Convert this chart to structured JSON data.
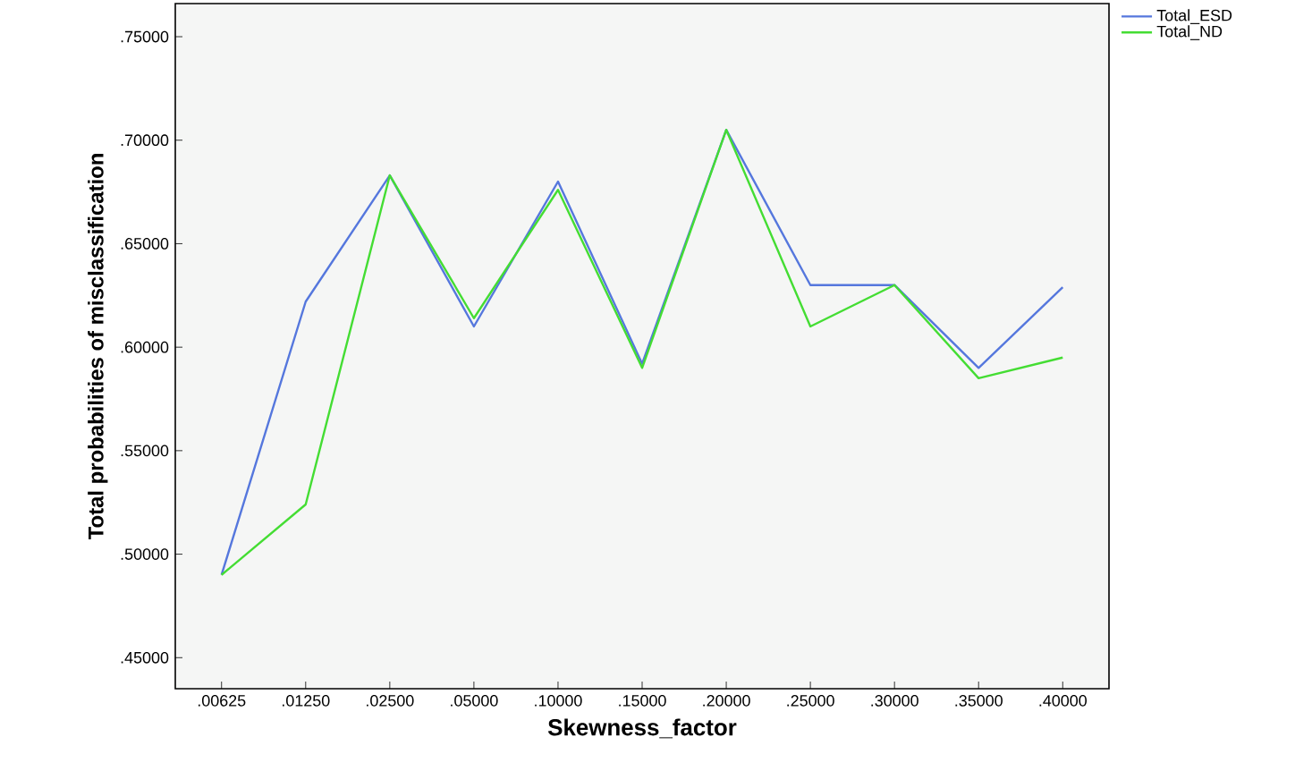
{
  "chart_data": {
    "type": "line",
    "xlabel": "Skewness_factor",
    "ylabel": "Total probabilities of misclassification",
    "categories": [
      ".00625",
      ".01250",
      ".02500",
      ".05000",
      ".10000",
      ".15000",
      ".20000",
      ".25000",
      ".30000",
      ".35000",
      ".40000"
    ],
    "series": [
      {
        "name": "Total_ESD",
        "color": "#5577dd",
        "values": [
          0.49,
          0.622,
          0.683,
          0.61,
          0.68,
          0.592,
          0.705,
          0.63,
          0.63,
          0.59,
          0.629
        ]
      },
      {
        "name": "Total_ND",
        "color": "#44dd33",
        "values": [
          0.49,
          0.524,
          0.683,
          0.614,
          0.676,
          0.59,
          0.705,
          0.61,
          0.63,
          0.585,
          0.595
        ]
      }
    ],
    "ylim": [
      0.435,
      0.766
    ],
    "yticks": [
      {
        "value": 0.45,
        "label": ".45000"
      },
      {
        "value": 0.5,
        "label": ".50000"
      },
      {
        "value": 0.55,
        "label": ".55000"
      },
      {
        "value": 0.6,
        "label": ".60000"
      },
      {
        "value": 0.65,
        "label": ".65000"
      },
      {
        "value": 0.7,
        "label": ".70000"
      },
      {
        "value": 0.75,
        "label": ".75000"
      }
    ],
    "legend": "top right",
    "grid": false,
    "marker": "none",
    "line_style": "solid"
  }
}
